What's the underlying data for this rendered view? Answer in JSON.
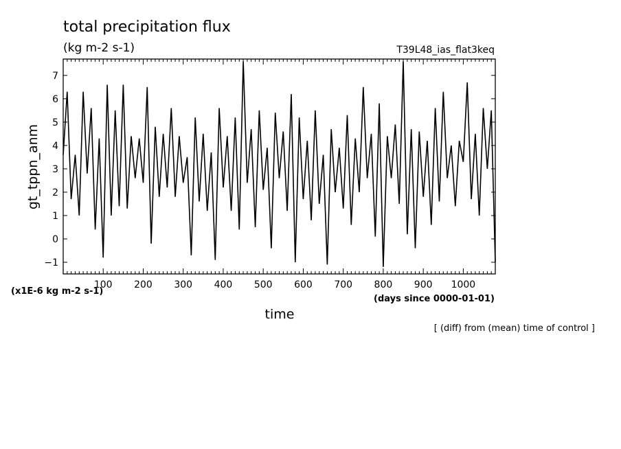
{
  "chart_data": {
    "type": "line",
    "title": "total precipitation flux",
    "subtitle": "(kg m-2 s-1)",
    "run_label": "T39L48_ias_flat3keq",
    "xlabel": "time",
    "x_units": "(days since 0000-01-01)",
    "ylabel": "gt_tppn_anm",
    "y_units": "(x1E-6 kg m-2 s-1)",
    "note": "[ (diff) from (mean) time of control ]",
    "xlim": [
      0,
      1080
    ],
    "ylim": [
      -1.5,
      7.7
    ],
    "x_ticks": [
      100,
      200,
      300,
      400,
      500,
      600,
      700,
      800,
      900,
      1000
    ],
    "x_tick_labels": [
      "100",
      "200",
      "300",
      "400",
      "500",
      "600",
      "700",
      "800",
      "900",
      "1000"
    ],
    "y_ticks": [
      -1,
      0,
      1,
      2,
      3,
      4,
      5,
      6,
      7
    ],
    "y_tick_labels": [
      "−1",
      "0",
      "1",
      "2",
      "3",
      "4",
      "5",
      "6",
      "7"
    ],
    "grid": false,
    "legend": "none",
    "line_color": "#000000",
    "series": [
      {
        "x": [
          0,
          10,
          20,
          30,
          40,
          50,
          60,
          70,
          80,
          90,
          100,
          110,
          120,
          130,
          140,
          150,
          160,
          170,
          180,
          190,
          200,
          210,
          220,
          230,
          240,
          250,
          260,
          270,
          280,
          290,
          300,
          310,
          320,
          330,
          340,
          350,
          360,
          370,
          380,
          390,
          400,
          410,
          420,
          430,
          440,
          450,
          460,
          470,
          480,
          490,
          500,
          510,
          520,
          530,
          540,
          550,
          560,
          570,
          580,
          590,
          600,
          610,
          620,
          630,
          640,
          650,
          660,
          670,
          680,
          690,
          700,
          710,
          720,
          730,
          740,
          750,
          760,
          770,
          780,
          790,
          800,
          810,
          820,
          830,
          840,
          850,
          860,
          870,
          880,
          890,
          900,
          910,
          920,
          930,
          940,
          950,
          960,
          970,
          980,
          990,
          1000,
          1010,
          1020,
          1030,
          1040,
          1050,
          1060,
          1070,
          1080
        ],
        "y": [
          3.6,
          6.3,
          1.7,
          3.6,
          1.0,
          6.3,
          2.8,
          5.6,
          0.4,
          4.3,
          -0.8,
          6.6,
          1.0,
          5.5,
          1.4,
          6.6,
          1.3,
          4.4,
          2.6,
          4.3,
          2.4,
          6.5,
          -0.2,
          4.8,
          1.8,
          4.5,
          2.2,
          5.6,
          1.8,
          4.4,
          2.4,
          3.5,
          -0.7,
          5.2,
          1.6,
          4.5,
          1.2,
          3.7,
          -0.9,
          5.6,
          2.2,
          4.4,
          1.2,
          5.2,
          0.4,
          7.6,
          2.4,
          4.7,
          0.5,
          5.5,
          2.1,
          3.9,
          -0.4,
          5.4,
          2.6,
          4.6,
          1.2,
          6.2,
          -1.0,
          5.2,
          1.7,
          4.2,
          0.8,
          5.5,
          1.5,
          3.6,
          -1.1,
          4.7,
          2.0,
          3.9,
          1.3,
          5.3,
          0.6,
          4.3,
          2.0,
          6.5,
          2.6,
          4.5,
          0.1,
          5.8,
          -1.2,
          4.4,
          2.6,
          4.9,
          1.5,
          7.6,
          0.2,
          4.7,
          -0.4,
          4.6,
          1.8,
          4.2,
          0.6,
          5.6,
          1.6,
          6.3,
          2.6,
          4.0,
          1.4,
          4.2,
          3.3,
          6.7,
          1.7,
          4.5,
          1.0,
          5.6,
          3.0,
          5.5,
          -1.0
        ]
      }
    ]
  }
}
